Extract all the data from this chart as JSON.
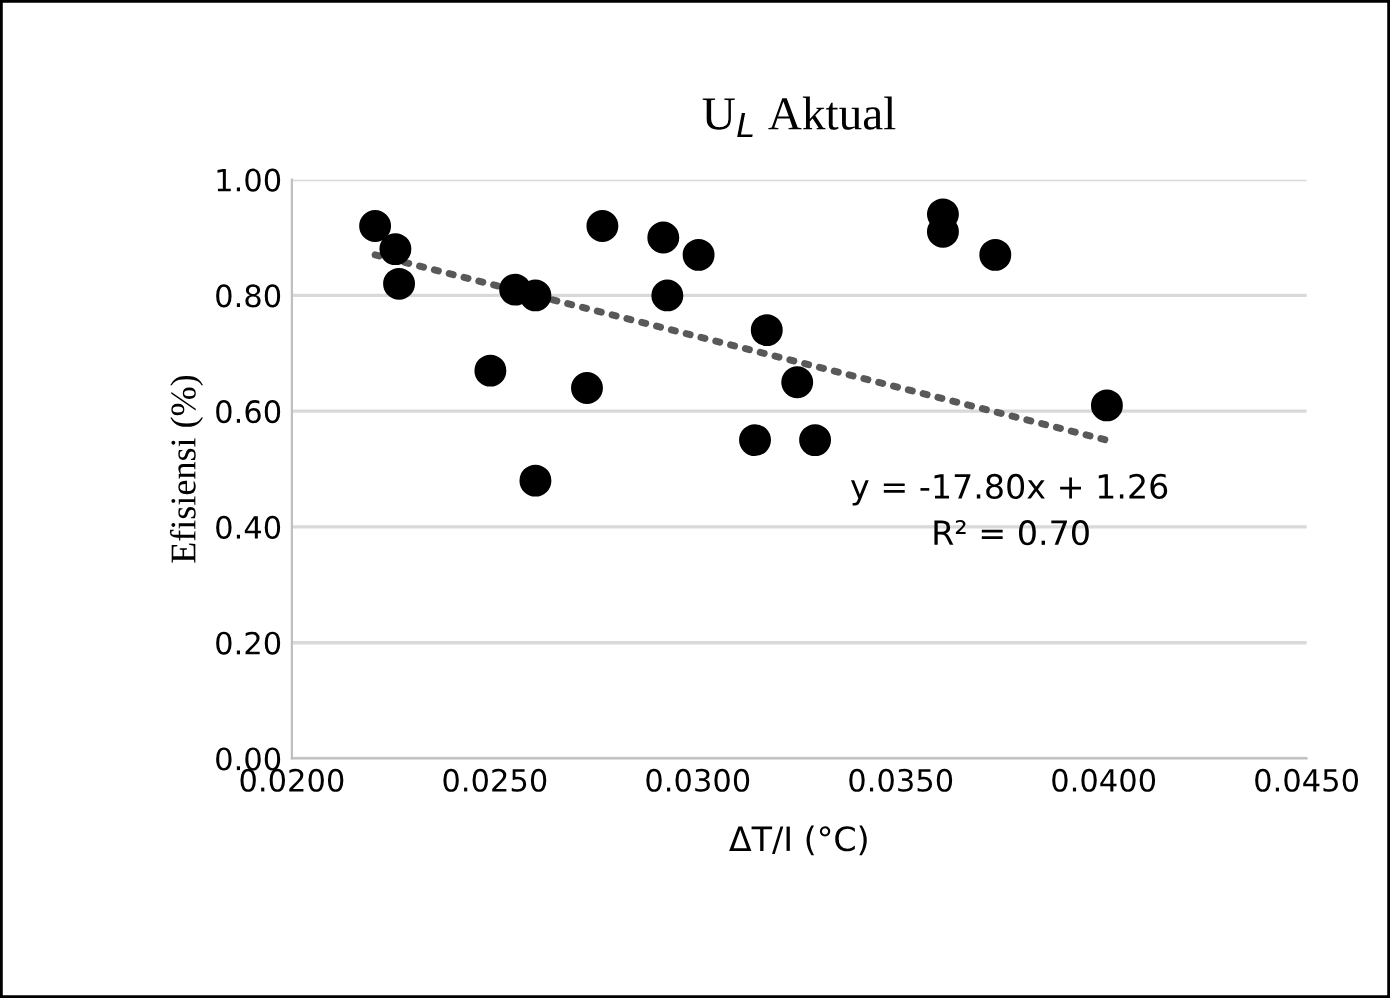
{
  "chart_data": {
    "type": "scatter",
    "title": "U$_{L}$ Aktual",
    "xlabel": "ΔT/I (°C)",
    "ylabel": "Efisiensi (%)",
    "x": [
      0.02205,
      0.02255,
      0.02264,
      0.02489,
      0.0255,
      0.026,
      0.026,
      0.02727,
      0.02765,
      0.02915,
      0.02925,
      0.03002,
      0.0317,
      0.03141,
      0.03245,
      0.03289,
      0.03604,
      0.03604,
      0.03733,
      0.04008
    ],
    "series": [
      {
        "color": "#000000",
        "marker": "circle",
        "values": [
          0.92,
          0.88,
          0.82,
          0.67,
          0.81,
          0.8,
          0.48,
          0.64,
          0.92,
          0.9,
          0.8,
          0.87,
          0.74,
          0.55,
          0.65,
          0.55,
          0.94,
          0.91,
          0.87,
          0.61
        ]
      },
      {
        "type": "line",
        "color": "#595959",
        "marker": "none",
        "line_style": "dotted",
        "x": [
          0.02205,
          0.04008
        ],
        "values": [
          0.87,
          0.55
        ]
      }
    ],
    "annotations": [
      "y = -17.80x + 1.26",
      "R² = 0.70"
    ],
    "xlim": [
      0.02,
      0.045
    ],
    "ylim": [
      0,
      1
    ],
    "xticks": [
      {
        "value": 0.02,
        "label": "0.0200"
      },
      {
        "value": 0.025,
        "label": "0.0250"
      },
      {
        "value": 0.03,
        "label": "0.0300"
      },
      {
        "value": 0.035,
        "label": "0.0350"
      },
      {
        "value": 0.04,
        "label": "0.0400"
      },
      {
        "value": 0.045,
        "label": "0.0450"
      }
    ],
    "yticks": [
      {
        "value": 0,
        "label": "0.00"
      },
      {
        "value": 0.2,
        "label": "0.20"
      },
      {
        "value": 0.4,
        "label": "0.40"
      },
      {
        "value": 0.6,
        "label": "0.60"
      },
      {
        "value": 0.8,
        "label": "0.80"
      },
      {
        "value": 1,
        "label": "1.00"
      }
    ],
    "grid": "y",
    "legend": false
  }
}
